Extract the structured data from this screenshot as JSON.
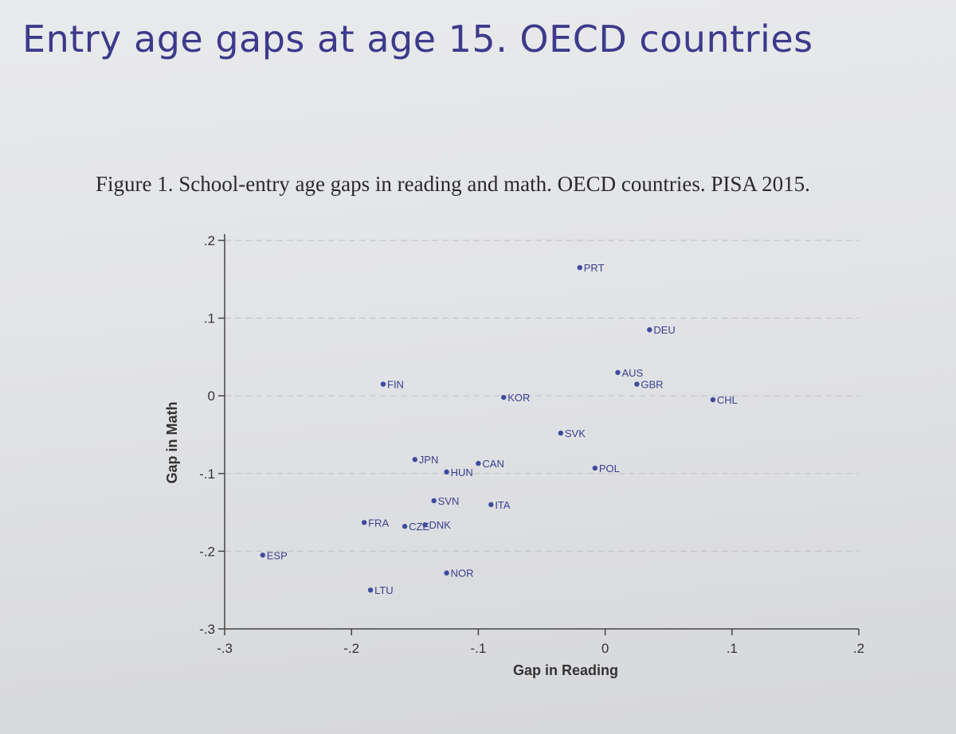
{
  "slide": {
    "title": "Entry age gaps at age 15. OECD countries",
    "caption": "Figure 1. School-entry age gaps in reading and math. OECD countries. PISA 2015."
  },
  "chart_data": {
    "type": "scatter",
    "title": "Figure 1. School-entry age gaps in reading and math. OECD countries. PISA 2015.",
    "xlabel": "Gap in Reading",
    "ylabel": "Gap in Math",
    "xlim": [
      -0.3,
      0.2
    ],
    "ylim": [
      -0.3,
      0.2
    ],
    "xticks": [
      -0.3,
      -0.2,
      -0.1,
      0,
      0.1,
      0.2
    ],
    "xtick_labels": [
      "-.3",
      "-.2",
      "-.1",
      "0",
      ".1",
      ".2"
    ],
    "yticks": [
      -0.3,
      -0.2,
      -0.1,
      0,
      0.1,
      0.2
    ],
    "ytick_labels": [
      "-.3",
      "-.2",
      "-.1",
      "0",
      ".1",
      ".2"
    ],
    "grid": true,
    "points": [
      {
        "label": "PRT",
        "x": -0.02,
        "y": 0.165
      },
      {
        "label": "DEU",
        "x": 0.035,
        "y": 0.085
      },
      {
        "label": "AUS",
        "x": 0.01,
        "y": 0.03
      },
      {
        "label": "GBR",
        "x": 0.025,
        "y": 0.015
      },
      {
        "label": "CHL",
        "x": 0.085,
        "y": -0.005
      },
      {
        "label": "FIN",
        "x": -0.175,
        "y": 0.015
      },
      {
        "label": "KOR",
        "x": -0.08,
        "y": -0.002
      },
      {
        "label": "SVK",
        "x": -0.035,
        "y": -0.048
      },
      {
        "label": "JPN",
        "x": -0.15,
        "y": -0.082
      },
      {
        "label": "CAN",
        "x": -0.1,
        "y": -0.087
      },
      {
        "label": "HUN",
        "x": -0.125,
        "y": -0.098
      },
      {
        "label": "POL",
        "x": -0.008,
        "y": -0.093
      },
      {
        "label": "SVN",
        "x": -0.135,
        "y": -0.135
      },
      {
        "label": "ITA",
        "x": -0.09,
        "y": -0.14
      },
      {
        "label": "FRA",
        "x": -0.19,
        "y": -0.163
      },
      {
        "label": "CZE",
        "x": -0.158,
        "y": -0.168
      },
      {
        "label": "DNK",
        "x": -0.142,
        "y": -0.166
      },
      {
        "label": "ESP",
        "x": -0.27,
        "y": -0.205
      },
      {
        "label": "NOR",
        "x": -0.125,
        "y": -0.228
      },
      {
        "label": "LTU",
        "x": -0.185,
        "y": -0.25
      }
    ]
  }
}
